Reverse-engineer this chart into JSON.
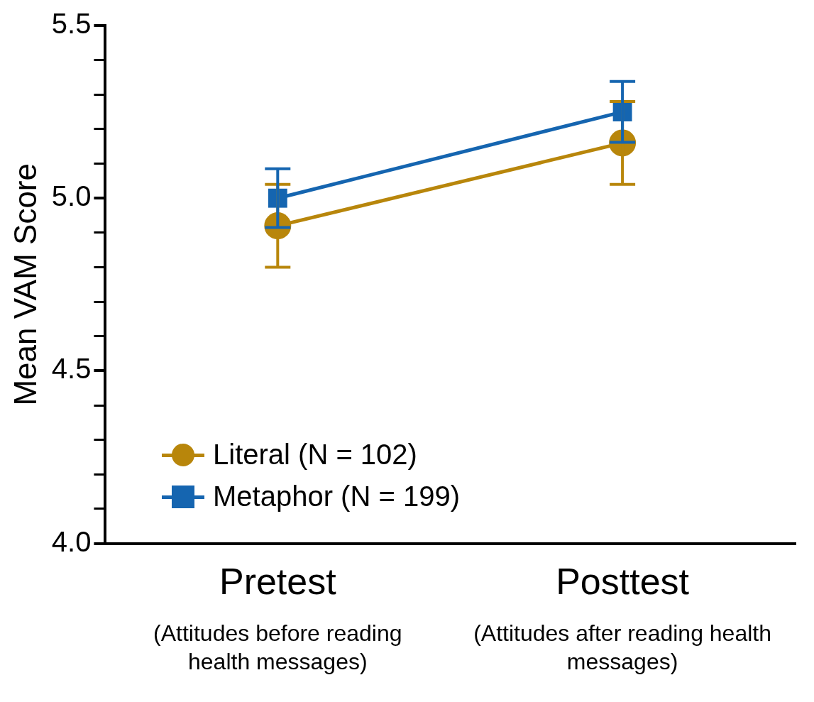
{
  "chart_data": {
    "type": "line",
    "ylabel": "Mean VAM Score",
    "categories": [
      "Pretest",
      "Posttest"
    ],
    "annotations": [
      "(Attitudes before reading health messages)",
      "(Attitudes after reading health messages)"
    ],
    "series": [
      {
        "name": "Literal (N = 102)",
        "color": "#b8860b",
        "values": [
          4.92,
          5.16
        ],
        "errors": [
          0.12,
          0.12
        ],
        "marker": "circle"
      },
      {
        "name": "Metaphor (N = 199)",
        "color": "#1565b0",
        "values": [
          5.0,
          5.25
        ],
        "errors": [
          0.085,
          0.088
        ],
        "marker": "square"
      }
    ],
    "ylim": [
      4.0,
      5.5
    ],
    "yticks": [
      {
        "value": 4.0,
        "label": "4.0"
      },
      {
        "value": 4.1,
        "label": null
      },
      {
        "value": 4.2,
        "label": null
      },
      {
        "value": 4.3,
        "label": null
      },
      {
        "value": 4.4,
        "label": null
      },
      {
        "value": 4.5,
        "label": "4.5"
      },
      {
        "value": 4.6,
        "label": null
      },
      {
        "value": 4.7,
        "label": null
      },
      {
        "value": 4.8,
        "label": null
      },
      {
        "value": 4.9,
        "label": null
      },
      {
        "value": 5.0,
        "label": "5.0"
      },
      {
        "value": 5.1,
        "label": null
      },
      {
        "value": 5.2,
        "label": null
      },
      {
        "value": 5.3,
        "label": null
      },
      {
        "value": 5.4,
        "label": null
      },
      {
        "value": 5.5,
        "label": "5.5"
      }
    ],
    "grid": false,
    "legend": "bottom left",
    "line_style": "solid"
  }
}
